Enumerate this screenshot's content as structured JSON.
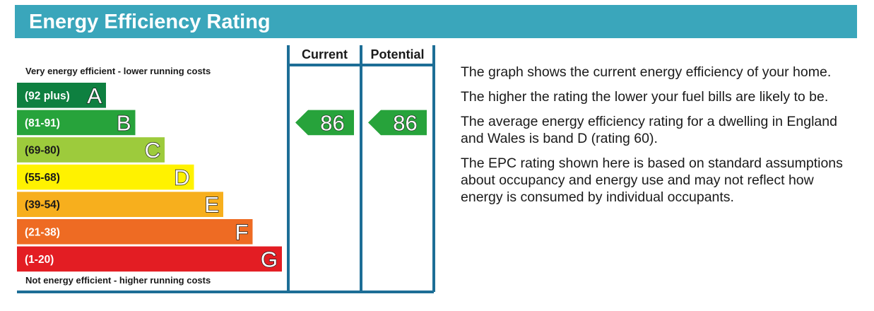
{
  "header": {
    "title": "Energy Efficiency Rating"
  },
  "chart_data": {
    "type": "bar",
    "top_label": "Very energy efficient - lower running costs",
    "bottom_label": "Not energy efficient - higher running costs",
    "bands": [
      {
        "range": "(92 plus)",
        "letter": "A",
        "color": "#0e8040"
      },
      {
        "range": "(81-91)",
        "letter": "B",
        "color": "#27a33b"
      },
      {
        "range": "(69-80)",
        "letter": "C",
        "color": "#9dcb3c"
      },
      {
        "range": "(55-68)",
        "letter": "D",
        "color": "#fff200"
      },
      {
        "range": "(39-54)",
        "letter": "E",
        "color": "#f7af1d"
      },
      {
        "range": "(21-38)",
        "letter": "F",
        "color": "#ee6b23"
      },
      {
        "range": "(1-20)",
        "letter": "G",
        "color": "#e31d23"
      }
    ],
    "columns": [
      {
        "label": "Current",
        "value": 86,
        "band": "B"
      },
      {
        "label": "Potential",
        "value": 86,
        "band": "B"
      }
    ],
    "colors": {
      "frame": "#1d6e96",
      "arrow": "#27a33b"
    }
  },
  "description": {
    "paragraphs": [
      "The graph shows the current energy efficiency of your home.",
      "The higher the rating the lower your fuel bills are likely to be.",
      "The average energy efficiency rating for a dwelling in England and Wales is band D (rating 60).",
      "The EPC rating shown here is based on standard assumptions about occupancy and energy use and may not reflect how energy is consumed by individual occupants."
    ]
  }
}
